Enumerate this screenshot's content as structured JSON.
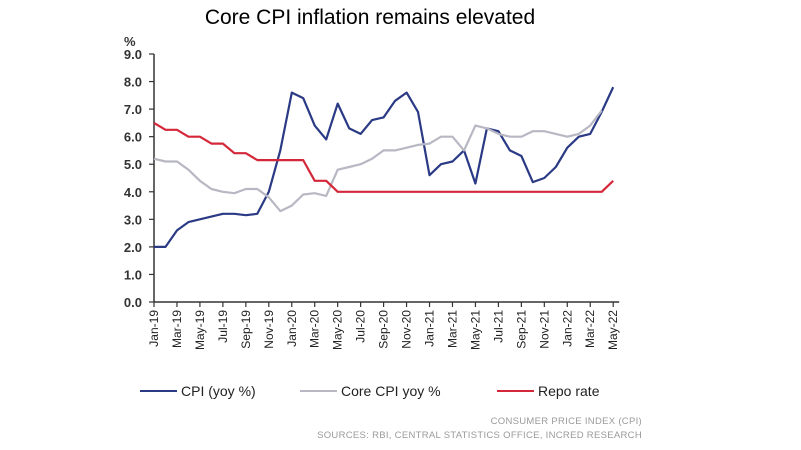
{
  "chart_data": {
    "type": "line",
    "title": "Core CPI inflation remains elevated",
    "ylabel": "%",
    "xlabel": "",
    "ylim": [
      0,
      9
    ],
    "yticks": [
      "0.0",
      "1.0",
      "2.0",
      "3.0",
      "4.0",
      "5.0",
      "6.0",
      "7.0",
      "8.0",
      "9.0"
    ],
    "grid": false,
    "legend_position": "bottom",
    "x": [
      "Jan-19",
      "Feb-19",
      "Mar-19",
      "Apr-19",
      "May-19",
      "Jun-19",
      "Jul-19",
      "Aug-19",
      "Sep-19",
      "Oct-19",
      "Nov-19",
      "Dec-19",
      "Jan-20",
      "Feb-20",
      "Mar-20",
      "Apr-20",
      "May-20",
      "Jun-20",
      "Jul-20",
      "Aug-20",
      "Sep-20",
      "Oct-20",
      "Nov-20",
      "Dec-20",
      "Jan-21",
      "Feb-21",
      "Mar-21",
      "Apr-21",
      "May-21",
      "Jun-21",
      "Jul-21",
      "Aug-21",
      "Sep-21",
      "Oct-21",
      "Nov-21",
      "Dec-21",
      "Jan-22",
      "Feb-22",
      "Mar-22",
      "Apr-22",
      "May-22"
    ],
    "tick_labels": [
      "Jan-19",
      "Mar-19",
      "May-19",
      "Jul-19",
      "Sep-19",
      "Nov-19",
      "Jan-20",
      "Mar-20",
      "May-20",
      "Jul-20",
      "Sep-20",
      "Nov-20",
      "Jan-21",
      "Mar-21",
      "May-21",
      "Jul-21",
      "Sep-21",
      "Nov-21",
      "Jan-22",
      "Mar-22",
      "May-22"
    ],
    "series": [
      {
        "name": "CPI (yoy %)",
        "color": "#2b3a85",
        "values": [
          2.0,
          2.0,
          2.6,
          2.9,
          3.0,
          3.1,
          3.2,
          3.2,
          3.15,
          3.2,
          4.0,
          5.5,
          7.6,
          7.4,
          6.4,
          5.9,
          7.2,
          6.3,
          6.1,
          6.6,
          6.7,
          7.3,
          7.6,
          6.9,
          4.6,
          5.0,
          5.1,
          5.5,
          4.3,
          6.3,
          6.2,
          5.5,
          5.3,
          4.35,
          4.5,
          4.9,
          5.6,
          6.0,
          6.1,
          6.9,
          7.8
        ]
      },
      {
        "name": "Core CPI yoy %",
        "color": "#b8b8c4",
        "values": [
          5.2,
          5.1,
          5.1,
          4.8,
          4.4,
          4.1,
          4.0,
          3.95,
          4.1,
          4.1,
          3.8,
          3.3,
          3.5,
          3.9,
          3.95,
          3.85,
          4.8,
          4.9,
          5.0,
          5.2,
          5.5,
          5.5,
          5.6,
          5.7,
          5.75,
          6.0,
          6.0,
          5.5,
          6.4,
          6.3,
          6.1,
          6.0,
          6.0,
          6.2,
          6.2,
          6.1,
          6.0,
          6.1,
          6.4,
          6.95,
          null
        ]
      },
      {
        "name": "Repo rate",
        "color": "#d4283a",
        "values": [
          6.5,
          6.25,
          6.25,
          6.0,
          6.0,
          5.75,
          5.75,
          5.4,
          5.4,
          5.15,
          5.15,
          5.15,
          5.15,
          5.15,
          4.4,
          4.4,
          4.0,
          4.0,
          4.0,
          4.0,
          4.0,
          4.0,
          4.0,
          4.0,
          4.0,
          4.0,
          4.0,
          4.0,
          4.0,
          4.0,
          4.0,
          4.0,
          4.0,
          4.0,
          4.0,
          4.0,
          4.0,
          4.0,
          4.0,
          4.0,
          4.4
        ]
      }
    ],
    "footnotes": [
      "CONSUMER PRICE INDEX (CPI)",
      "SOURCES: RBI, CENTRAL STATISTICS OFFICE, INCRED RESEARCH"
    ]
  }
}
